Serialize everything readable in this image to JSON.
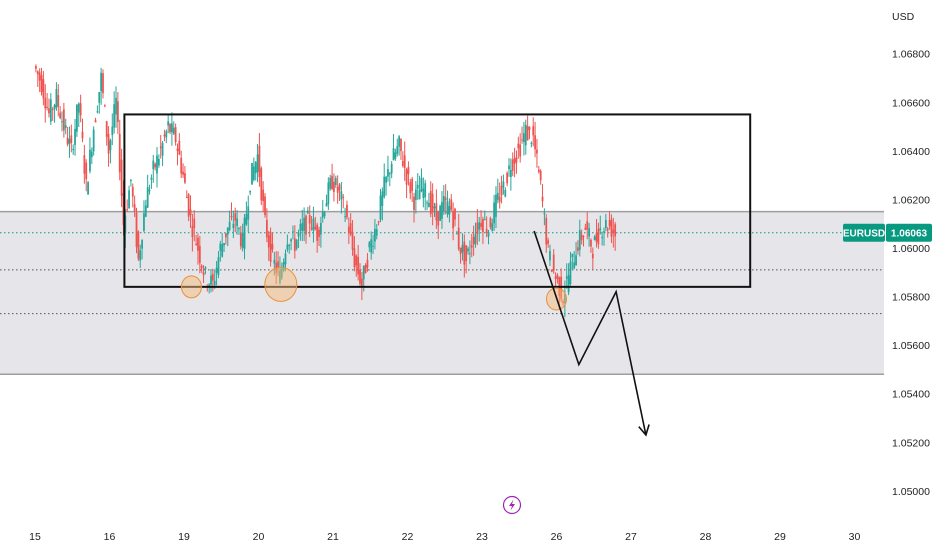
{
  "chart_data": {
    "type": "candlestick",
    "currency": "USD",
    "symbol": "EURUSD",
    "last_price": "1.06063",
    "y_ticks": [
      "1.06800",
      "1.06600",
      "1.06400",
      "1.06200",
      "1.06000",
      "1.05800",
      "1.05600",
      "1.05400",
      "1.05200",
      "1.05000"
    ],
    "y_tick_values": [
      1.068,
      1.066,
      1.064,
      1.062,
      1.06,
      1.058,
      1.056,
      1.054,
      1.052,
      1.05
    ],
    "ylim": [
      1.0488,
      1.0698
    ],
    "x_ticks": [
      "15",
      "16",
      "19",
      "20",
      "21",
      "22",
      "23",
      "26",
      "27",
      "28",
      "29",
      "30"
    ],
    "x_tick_slots": [
      0,
      10,
      20,
      30,
      40,
      50,
      60,
      70,
      80,
      90,
      100,
      110
    ],
    "price_path": [
      1.0675,
      1.0668,
      1.0655,
      1.0662,
      1.065,
      1.064,
      1.066,
      1.0625,
      1.065,
      1.067,
      1.064,
      1.066,
      1.061,
      1.0628,
      1.0595,
      1.062,
      1.0632,
      1.064,
      1.065,
      1.0645,
      1.063,
      1.0612,
      1.06,
      1.0588,
      1.0585,
      1.06,
      1.0608,
      1.0612,
      1.0602,
      1.0628,
      1.0638,
      1.061,
      1.0595,
      1.0588,
      1.0605,
      1.0602,
      1.0608,
      1.0612,
      1.0606,
      1.0618,
      1.0628,
      1.0622,
      1.0612,
      1.0595,
      1.0585,
      1.06,
      1.061,
      1.0625,
      1.0636,
      1.0642,
      1.063,
      1.062,
      1.0625,
      1.062,
      1.0612,
      1.0618,
      1.0616,
      1.0602,
      1.0595,
      1.0605,
      1.0612,
      1.0608,
      1.0618,
      1.0625,
      1.0635,
      1.064,
      1.0648,
      1.0645,
      1.0625,
      1.0598,
      1.0588,
      1.058,
      1.0592,
      1.0602,
      1.0608,
      1.06,
      1.0608,
      1.061,
      1.0606
    ],
    "resistance_zone": [
      1.0591,
      1.0615
    ],
    "support_zone": [
      1.0548,
      1.0615
    ],
    "range_box": {
      "top": 1.0655,
      "bottom": 1.0584,
      "start_slot": 12,
      "end_slot": 96
    },
    "dotted_levels": [
      1.06063,
      1.0591,
      1.0573
    ],
    "highlight_circles": [
      {
        "slot": 21,
        "price": 1.0584
      },
      {
        "slot": 33,
        "price": 1.0585
      },
      {
        "slot": 70,
        "price": 1.0579
      }
    ],
    "forecast_path": [
      {
        "slot": 67,
        "price": 1.0607
      },
      {
        "slot": 73,
        "price": 1.0552
      },
      {
        "slot": 78,
        "price": 1.0582
      },
      {
        "slot": 82,
        "price": 1.0523
      }
    ],
    "colors": {
      "bull": "#26a69a",
      "bear": "#ef5350",
      "zone": "#e6e6ea",
      "zone_line": "#9e9e9e",
      "circle_fill": "#f5b97a",
      "circle_stroke": "#e8913a",
      "tag": "#089981",
      "grid": "#ffffff",
      "flash": "#9c27b0"
    },
    "grid": false,
    "legend": "none"
  }
}
